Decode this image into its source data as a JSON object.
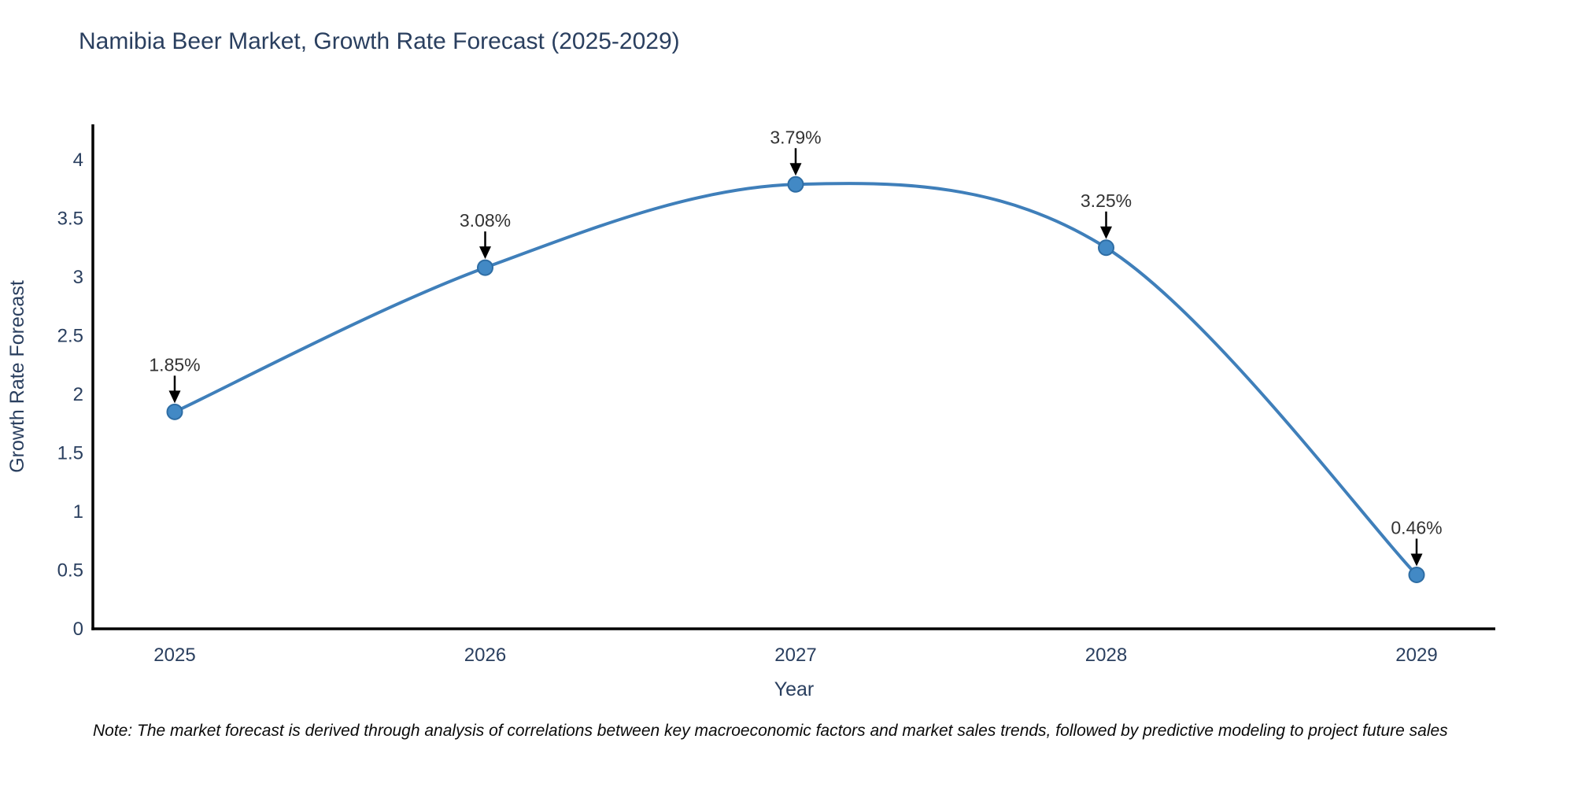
{
  "title": "Namibia Beer Market, Growth Rate Forecast (2025-2029)",
  "note": "Note: The market forecast is derived through analysis of correlations between key macroeconomic factors and market sales trends, followed by predictive modeling to project future sales",
  "chart_data": {
    "type": "line",
    "title": "Namibia Beer Market, Growth Rate Forecast (2025-2029)",
    "x": [
      2025,
      2026,
      2027,
      2028,
      2029
    ],
    "y": [
      1.85,
      3.08,
      3.79,
      3.25,
      0.46
    ],
    "point_labels": [
      "1.85%",
      "3.08%",
      "3.79%",
      "3.25%",
      "0.46%"
    ],
    "xlabel": "Year",
    "ylabel": "Growth Rate Forecast",
    "xtick_labels": [
      "2025",
      "2026",
      "2027",
      "2028",
      "2029"
    ],
    "yticks": [
      0,
      0.5,
      1,
      1.5,
      2,
      2.5,
      3,
      3.5,
      4
    ],
    "ytick_labels": [
      "0",
      "0.5",
      "1",
      "1.5",
      "2",
      "2.5",
      "3",
      "3.5",
      "4"
    ],
    "ylim": [
      0,
      4.3
    ],
    "grid": false,
    "legend": "none",
    "line_shape": "spline",
    "colors": {
      "line": "#3f7fba",
      "marker_fill": "#4289c5",
      "marker_stroke": "#2e6da4",
      "axis": "#000000",
      "text": "#2a3f5f",
      "annotation": "#333333",
      "arrow": "#000000",
      "background": "#ffffff"
    }
  }
}
